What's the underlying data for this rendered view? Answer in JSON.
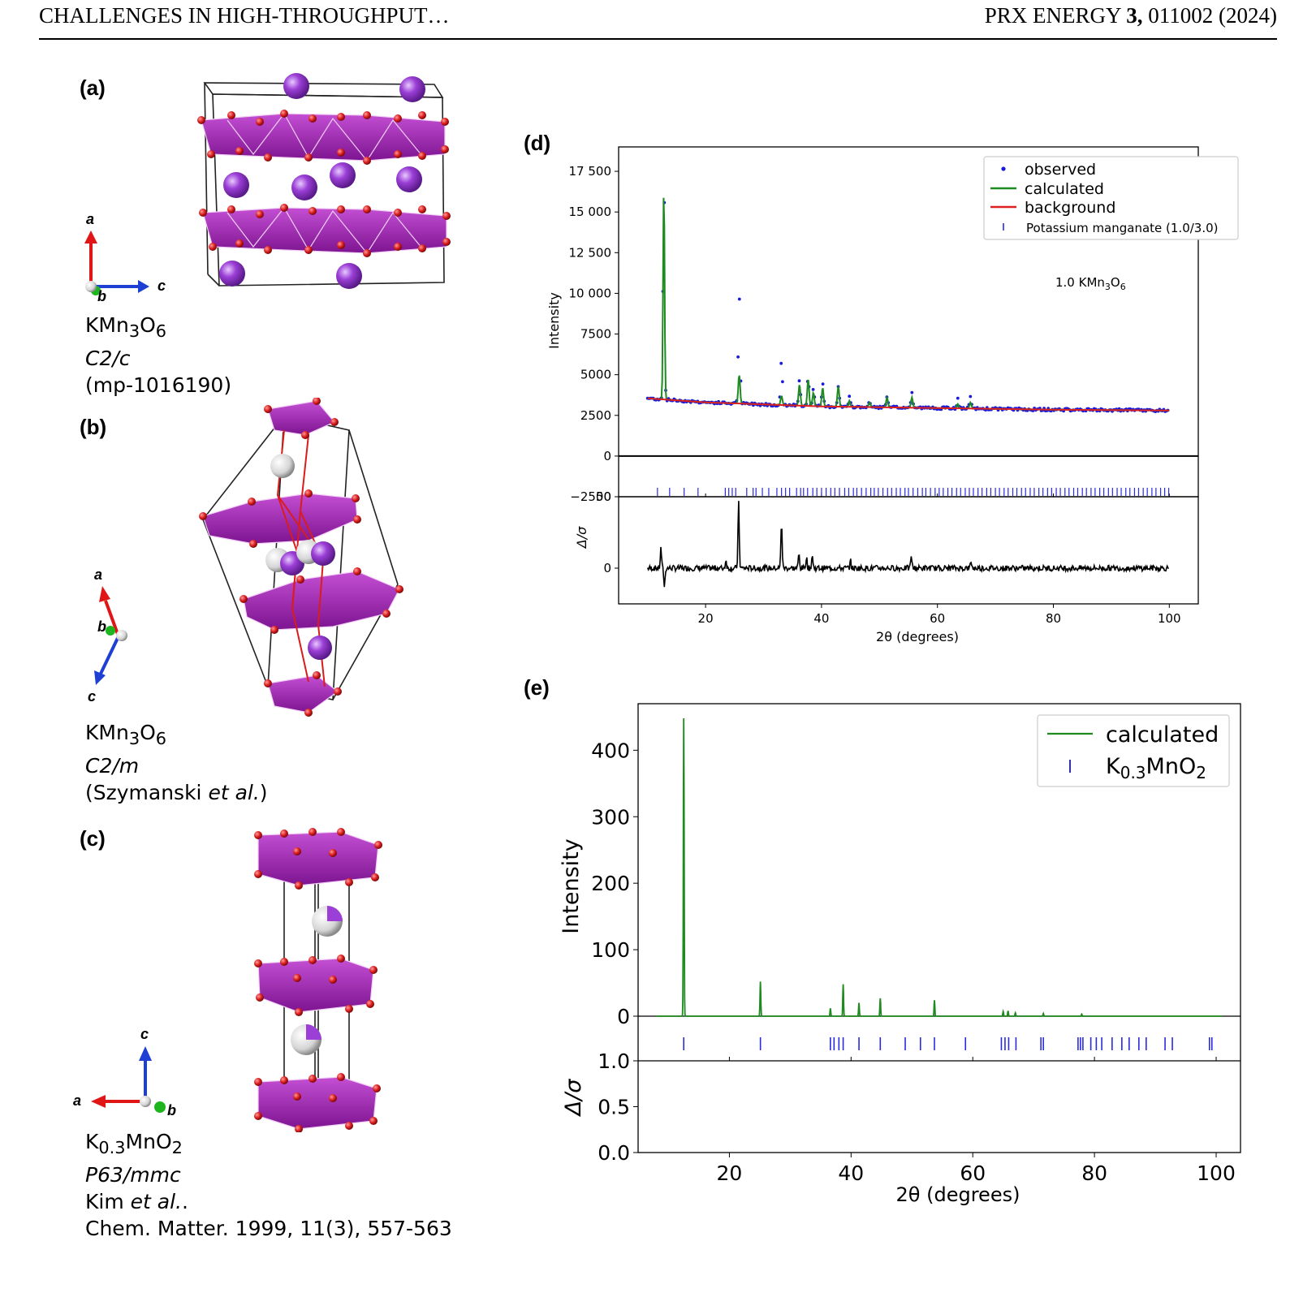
{
  "header": {
    "left": "CHALLENGES IN HIGH-THROUGHPUT…",
    "right_journal": "PRX ENERGY ",
    "right_volume": "3,",
    "right_rest": " 011002 (2024)"
  },
  "panels": {
    "a": {
      "label": "(a)",
      "axes": [
        "a",
        "b",
        "c"
      ],
      "caption": {
        "formula_main": "KMn",
        "sub1": "3",
        "mid": "O",
        "sub2": "6",
        "space_group": "C2/c",
        "source": "(mp-1016190)"
      }
    },
    "b": {
      "label": "(b)",
      "axes": [
        "a",
        "b",
        "c"
      ],
      "caption": {
        "formula_main": "KMn",
        "sub1": "3",
        "mid": "O",
        "sub2": "6",
        "space_group": "C2/m",
        "source_pre": "(Szymanski ",
        "source_ital": "et al.",
        "source_post": ")"
      }
    },
    "c": {
      "label": "(c)",
      "axes": [
        "c",
        "a",
        "b"
      ],
      "caption": {
        "formula_main": "K",
        "sub1": "0.3",
        "mid": "MnO",
        "sub2": "2",
        "space_group": "P63/mmc",
        "source_pre": "Kim ",
        "source_ital": "et al.",
        "source_post": ".",
        "reference": "Chem. Matter. 1999, 11(3), 557-563"
      }
    }
  },
  "colors": {
    "observed": "#1a1adb",
    "calculated": "#1f8a1f",
    "background": "#e02020",
    "difference": "#000000",
    "ticks": "#2a2ae0",
    "polyhedra": "#a21caf",
    "oxygen": "#d91c1c",
    "potassium": "#9b3fd6"
  },
  "chart_data": [
    {
      "panel": "(d)",
      "type": "line",
      "xlabel": "2θ (degrees)",
      "ylabel": "Intensity",
      "residual_ylabel": "Δ/σ",
      "xlim": [
        5,
        105
      ],
      "ylim": [
        -2500,
        19000
      ],
      "residual_ylim": [
        -25,
        50
      ],
      "xticks": [
        "20",
        "40",
        "60",
        "80",
        "100"
      ],
      "yticks": [
        "0",
        "2500",
        "5000",
        "7500",
        "10 000",
        "12 500",
        "15 000",
        "17 500",
        "−2500"
      ],
      "residual_yticks": [
        "0",
        "50"
      ],
      "annotation": {
        "main": "1.0 KMn",
        "sub1": "3",
        "mid": "O",
        "sub2": "6"
      },
      "legend": {
        "placement": "top-right",
        "entries": [
          "observed",
          "calculated",
          "background",
          "Potassium manganate (1.0/3.0)"
        ]
      },
      "background_line": {
        "x": [
          10,
          20,
          40,
          60,
          80,
          100
        ],
        "y": [
          3550,
          3300,
          3050,
          2950,
          2850,
          2800
        ]
      },
      "peaks": [
        {
          "x": 12.8,
          "observed": 18200,
          "calculated": 16500
        },
        {
          "x": 25.8,
          "observed": 9900,
          "calculated": 5000
        },
        {
          "x": 33.1,
          "observed": 5900,
          "calculated": 3700
        },
        {
          "x": 36.2,
          "observed": 4700,
          "calculated": 4400
        },
        {
          "x": 37.7,
          "observed": 4900,
          "calculated": 4700
        },
        {
          "x": 38.6,
          "observed": 4200,
          "calculated": 3900
        },
        {
          "x": 40.2,
          "observed": 4400,
          "calculated": 4200
        },
        {
          "x": 42.9,
          "observed": 4300,
          "calculated": 4300
        },
        {
          "x": 44.8,
          "observed": 3600,
          "calculated": 3400
        },
        {
          "x": 48.3,
          "observed": 3300,
          "calculated": 3300
        },
        {
          "x": 51.3,
          "observed": 3600,
          "calculated": 3600
        },
        {
          "x": 55.6,
          "observed": 3900,
          "calculated": 3600
        },
        {
          "x": 63.5,
          "observed": 3500,
          "calculated": 3200
        },
        {
          "x": 65.7,
          "observed": 3600,
          "calculated": 3300
        }
      ],
      "reflection_ticks": [
        11.7,
        13.8,
        16.3,
        18.7,
        23.4,
        24.0,
        24.6,
        25.2,
        27.1,
        28.2,
        28.7,
        29.8,
        30.9,
        32.3,
        33.1,
        33.8,
        34.5,
        35.7,
        36.4,
        36.9,
        37.6,
        38.5,
        39.2,
        40.0,
        40.8,
        41.6,
        42.3,
        43.1,
        44.0,
        44.7,
        45.5,
        46.1,
        46.9,
        47.7,
        48.5,
        49.1,
        49.8,
        50.6,
        51.4,
        52.1,
        52.9,
        53.6,
        54.4,
        55.0,
        55.8,
        56.6,
        57.4,
        58.0,
        58.8,
        59.6,
        60.3,
        61.0,
        61.8,
        62.5,
        63.3,
        64.0,
        64.8,
        65.5,
        66.2,
        67.0,
        67.7,
        68.5,
        69.2,
        70.0,
        70.7,
        71.5,
        72.2,
        73.0,
        73.7,
        74.5,
        75.2,
        76.0,
        76.7,
        77.5,
        78.2,
        79.0,
        79.7,
        80.5,
        81.2,
        82.0,
        82.7,
        83.5,
        84.2,
        85.0,
        85.7,
        86.5,
        87.2,
        88.0,
        88.7,
        89.5,
        90.2,
        91.0,
        91.7,
        92.5,
        93.2,
        94.0,
        94.7,
        95.5,
        96.2,
        97.0,
        97.7,
        98.5,
        99.2,
        99.9
      ],
      "residual_peaks": [
        {
          "x": 12.3,
          "y": 14
        },
        {
          "x": 12.9,
          "y": -13
        },
        {
          "x": 23.5,
          "y": 6
        },
        {
          "x": 25.7,
          "y": 46
        },
        {
          "x": 33.1,
          "y": 33
        },
        {
          "x": 36.1,
          "y": 10
        },
        {
          "x": 37.4,
          "y": 8
        },
        {
          "x": 38.4,
          "y": 9
        },
        {
          "x": 45.0,
          "y": 5
        },
        {
          "x": 55.5,
          "y": 9
        },
        {
          "x": 65.8,
          "y": 5
        }
      ]
    },
    {
      "panel": "(e)",
      "type": "line",
      "xlabel": "2θ (degrees)",
      "ylabel": "Intensity",
      "residual_ylabel": "Δ/σ",
      "xlim": [
        5,
        104
      ],
      "ylim": [
        0,
        470
      ],
      "residual_ylim": [
        0.0,
        1.0
      ],
      "xticks": [
        "20",
        "40",
        "60",
        "80",
        "100"
      ],
      "yticks": [
        "0",
        "100",
        "200",
        "300",
        "400"
      ],
      "residual_yticks": [
        "0.0",
        "0.5",
        "1.0"
      ],
      "legend": {
        "placement": "top-right",
        "entries": [
          {
            "main": "calculated"
          },
          {
            "main": "K",
            "sub1": "0.3",
            "mid": "MnO",
            "sub2": "2"
          }
        ]
      },
      "peaks": [
        {
          "x": 12.5,
          "y": 448
        },
        {
          "x": 25.1,
          "y": 52
        },
        {
          "x": 36.6,
          "y": 12
        },
        {
          "x": 38.7,
          "y": 48
        },
        {
          "x": 41.3,
          "y": 20
        },
        {
          "x": 44.8,
          "y": 27
        },
        {
          "x": 53.7,
          "y": 24
        },
        {
          "x": 65.0,
          "y": 7
        },
        {
          "x": 65.8,
          "y": 8
        },
        {
          "x": 67.0,
          "y": 5
        },
        {
          "x": 71.6,
          "y": 4
        },
        {
          "x": 77.9,
          "y": 3
        }
      ],
      "reflection_ticks": [
        12.5,
        25.1,
        36.6,
        37.2,
        38.0,
        38.7,
        41.3,
        44.8,
        48.9,
        51.4,
        53.7,
        58.8,
        64.7,
        65.3,
        65.9,
        67.1,
        71.2,
        71.6,
        77.3,
        77.7,
        78.1,
        79.4,
        80.3,
        81.2,
        82.9,
        84.5,
        85.7,
        87.3,
        88.5,
        91.6,
        92.8,
        98.9,
        99.3
      ]
    }
  ]
}
